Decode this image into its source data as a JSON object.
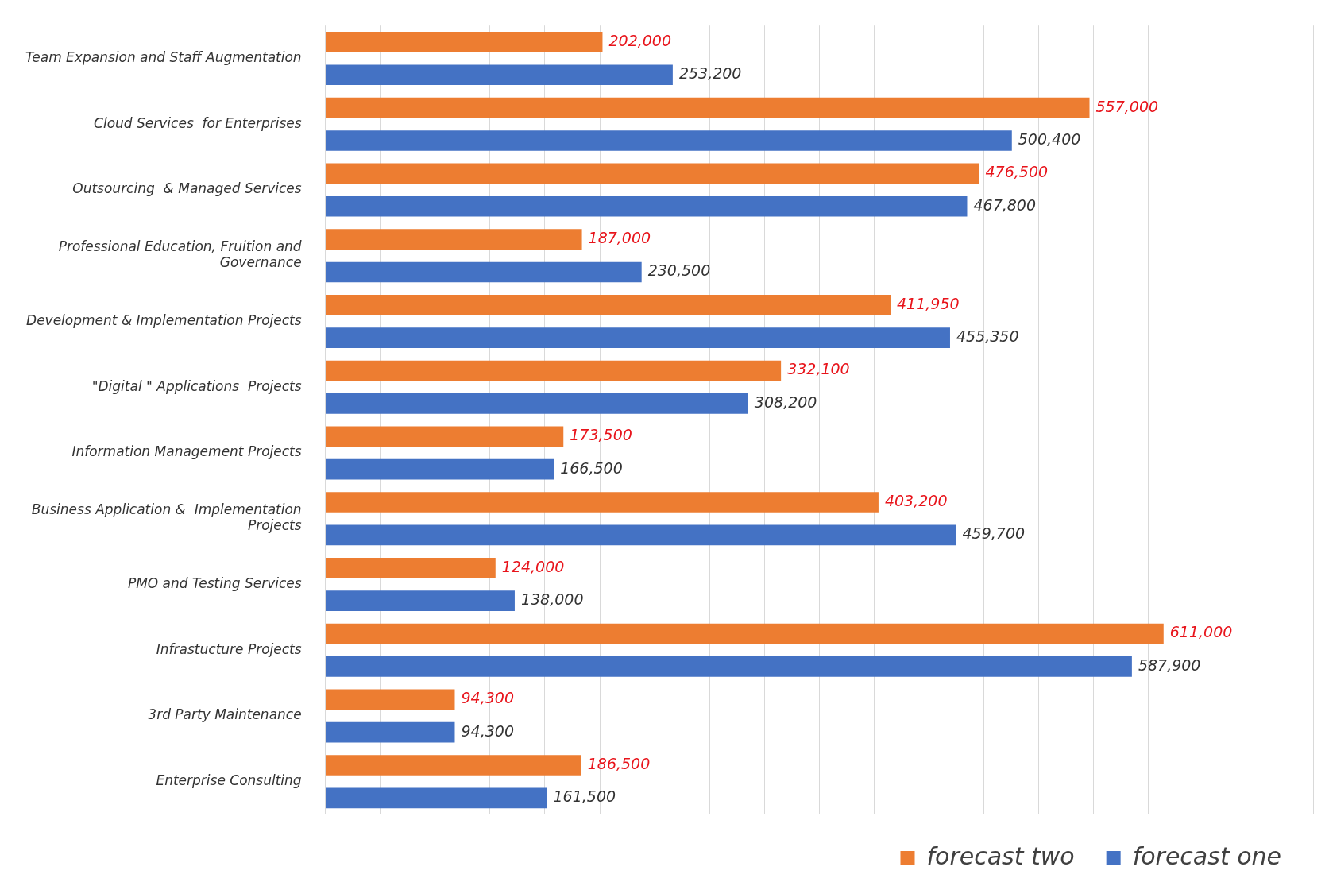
{
  "chart_data": {
    "type": "bar",
    "orientation": "horizontal",
    "categories": [
      "Team Expansion and Staff Augmentation",
      "Cloud Services  for Enterprises",
      "Outsourcing  & Managed Services",
      "Professional Education, Fruition and Governance",
      "Development & Implementation Projects",
      "\"Digital \" Applications  Projects",
      "Information Management Projects",
      "Business Application &  Implementation Projects",
      "PMO and Testing Services",
      "Infrastucture Projects",
      "3rd Party Maintenance",
      "Enterprise Consulting"
    ],
    "series": [
      {
        "name": "forecast two",
        "color": "#ed7d31",
        "values": [
          202000,
          557000,
          476500,
          187000,
          411950,
          332100,
          173500,
          403200,
          124000,
          611000,
          94300,
          186500
        ],
        "value_labels": [
          "202,000",
          "557,000",
          "476,500",
          "187,000",
          "411,950",
          "332,100",
          "173,500",
          "403,200",
          "124,000",
          "611,000",
          "94,300",
          "186,500"
        ]
      },
      {
        "name": "forecast one",
        "color": "#4472c4",
        "values": [
          253200,
          500400,
          467800,
          230500,
          455350,
          308200,
          166500,
          459700,
          138000,
          587900,
          94300,
          161500
        ],
        "value_labels": [
          "253,200",
          "500,400",
          "467,800",
          "230,500",
          "455,350",
          "308,200",
          "166,500",
          "459,700",
          "138,000",
          "587,900",
          "94,300",
          "161,500"
        ]
      }
    ],
    "tick_labels": "y",
    "grid": "x",
    "legend": "bottom right"
  }
}
